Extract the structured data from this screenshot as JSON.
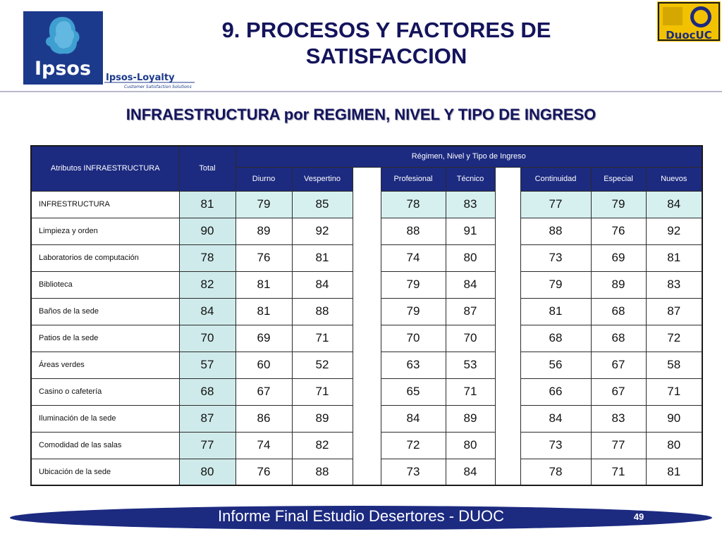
{
  "header": {
    "title_line1": "9. PROCESOS Y FACTORES DE",
    "title_line2": "SATISFACCION",
    "subtitle": "INFRAESTRUCTURA por REGIMEN, NIVEL Y TIPO DE INGRESO"
  },
  "logos": {
    "ipsos": "Ipsos",
    "loyalty_name": "Ipsos-Loyalty",
    "loyalty_tagline": "Customer Satisfaction Solutions",
    "duoc": "DuocUC"
  },
  "colors": {
    "navy": "#1c2a80",
    "title": "#14145c",
    "highlight": "#d6f0f0"
  },
  "table": {
    "header_attr": "Atributos INFRAESTRUCTURA",
    "header_total": "Total",
    "header_group": "Régimen, Nivel y Tipo de Ingreso",
    "subheaders": [
      "Diurno",
      "Vespertino",
      "Profesional",
      "Técnico",
      "Continuidad",
      "Especial",
      "Nuevos"
    ],
    "rows": [
      {
        "label": "INFRESTRUCTURA",
        "total": "81",
        "values": [
          "79",
          "85",
          "78",
          "83",
          "77",
          "79",
          "84"
        ]
      },
      {
        "label": "Limpieza y orden",
        "total": "90",
        "values": [
          "89",
          "92",
          "88",
          "91",
          "88",
          "76",
          "92"
        ]
      },
      {
        "label": "Laboratorios de computación",
        "total": "78",
        "values": [
          "76",
          "81",
          "74",
          "80",
          "73",
          "69",
          "81"
        ]
      },
      {
        "label": "Biblioteca",
        "total": "82",
        "values": [
          "81",
          "84",
          "79",
          "84",
          "79",
          "89",
          "83"
        ]
      },
      {
        "label": "Baños de la sede",
        "total": "84",
        "values": [
          "81",
          "88",
          "79",
          "87",
          "81",
          "68",
          "87"
        ]
      },
      {
        "label": "Patios de la sede",
        "total": "70",
        "values": [
          "69",
          "71",
          "70",
          "70",
          "68",
          "68",
          "72"
        ]
      },
      {
        "label": "Áreas verdes",
        "total": "57",
        "values": [
          "60",
          "52",
          "63",
          "53",
          "56",
          "67",
          "58"
        ]
      },
      {
        "label": "Casino o cafetería",
        "total": "68",
        "values": [
          "67",
          "71",
          "65",
          "71",
          "66",
          "67",
          "71"
        ]
      },
      {
        "label": "Iluminación de la sede",
        "total": "87",
        "values": [
          "86",
          "89",
          "84",
          "89",
          "84",
          "83",
          "90"
        ]
      },
      {
        "label": "Comodidad de las salas",
        "total": "77",
        "values": [
          "74",
          "82",
          "72",
          "80",
          "73",
          "77",
          "80"
        ]
      },
      {
        "label": "Ubicación de la sede",
        "total": "80",
        "values": [
          "76",
          "88",
          "73",
          "84",
          "78",
          "71",
          "81"
        ]
      }
    ]
  },
  "footer": {
    "text": "Informe Final Estudio Desertores - DUOC",
    "page": "49"
  }
}
